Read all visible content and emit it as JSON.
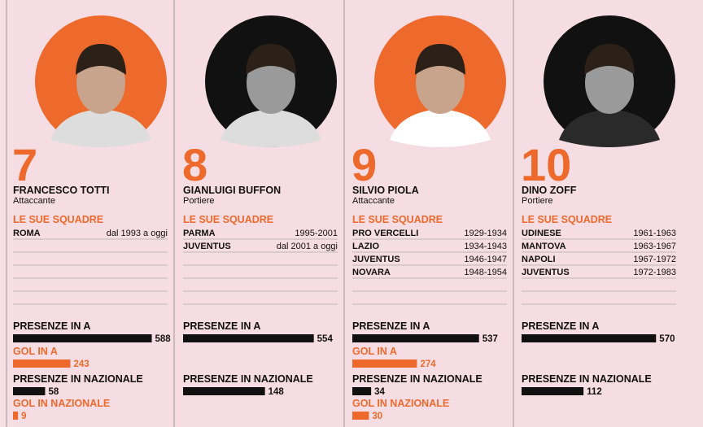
{
  "players": [
    {
      "rank": "7",
      "name": "FRANCESCO TOTTI",
      "role": "Attaccante",
      "teams_title": "LE SUE SQUADRE",
      "teams": [
        {
          "team": "ROMA",
          "period": "dal 1993 a oggi"
        }
      ],
      "stats": {
        "presenze_a": {
          "label": "PRESENZE IN A",
          "value": 588
        },
        "gol_a": {
          "label": "GOL IN A",
          "value": 243
        },
        "presenze_naz": {
          "label": "PRESENZE IN NAZIONALE",
          "value": 58
        },
        "gol_naz": {
          "label": "GOL IN NAZIONALE",
          "value": 9
        }
      }
    },
    {
      "rank": "8",
      "name": "GIANLUIGI BUFFON",
      "role": "Portiere",
      "teams_title": "LE SUE SQUADRE",
      "teams": [
        {
          "team": "PARMA",
          "period": "1995-2001"
        },
        {
          "team": "JUVENTUS",
          "period": "dal 2001 a oggi"
        }
      ],
      "stats": {
        "presenze_a": {
          "label": "PRESENZE IN A",
          "value": 554
        },
        "presenze_naz": {
          "label": "PRESENZE IN NAZIONALE",
          "value": 148
        }
      }
    },
    {
      "rank": "9",
      "name": "SILVIO PIOLA",
      "role": "Attaccante",
      "teams_title": "LE SUE SQUADRE",
      "teams": [
        {
          "team": "PRO VERCELLI",
          "period": "1929-1934"
        },
        {
          "team": "LAZIO",
          "period": "1934-1943"
        },
        {
          "team": "JUVENTUS",
          "period": "1946-1947"
        },
        {
          "team": "NOVARA",
          "period": "1948-1954"
        }
      ],
      "stats": {
        "presenze_a": {
          "label": "PRESENZE IN A",
          "value": 537
        },
        "gol_a": {
          "label": "GOL IN A",
          "value": 274
        },
        "presenze_naz": {
          "label": "PRESENZE IN NAZIONALE",
          "value": 34
        },
        "gol_naz": {
          "label": "GOL IN NAZIONALE",
          "value": 30
        }
      }
    },
    {
      "rank": "10",
      "name": "DINO ZOFF",
      "role": "Portiere",
      "teams_title": "LE SUE SQUADRE",
      "teams": [
        {
          "team": "UDINESE",
          "period": "1961-1963"
        },
        {
          "team": "MANTOVA",
          "period": "1963-1967"
        },
        {
          "team": "NAPOLI",
          "period": "1967-1972"
        },
        {
          "team": "JUVENTUS",
          "period": "1972-1983"
        }
      ],
      "stats": {
        "presenze_a": {
          "label": "PRESENZE IN A",
          "value": 570
        },
        "presenze_naz": {
          "label": "PRESENZE IN NAZIONALE",
          "value": 112
        }
      }
    }
  ]
}
